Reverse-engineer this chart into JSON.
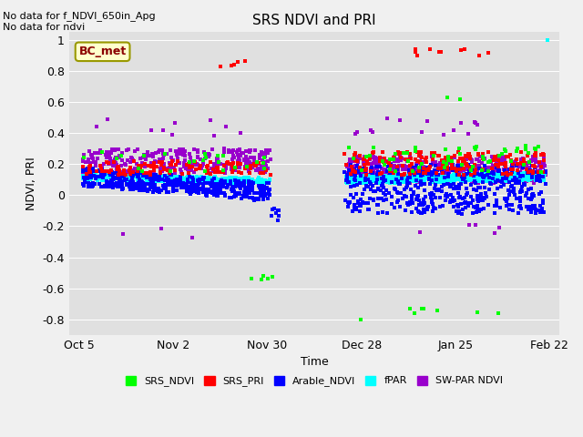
{
  "title": "SRS NDVI and PRI",
  "xlabel": "Time",
  "ylabel": "NDVI, PRI",
  "text_top_left": "No data for f_NDVI_650in_Apg\nNo data for ndvi",
  "bc_met_label": "BC_met",
  "ylim": [
    -0.9,
    1.05
  ],
  "xlim": [
    -3,
    143
  ],
  "background_color": "#f0f0f0",
  "plot_bg_color": "#e0e0e0",
  "colors": {
    "SRS_NDVI": "#00ff00",
    "SRS_PRI": "#ff0000",
    "Arable_NDVI": "#0000ff",
    "fPAR": "#00ffff",
    "SW_PAR_NDVI": "#9900cc"
  },
  "x_tick_labels": [
    "Oct 5",
    "Nov 2",
    "Nov 30",
    "Dec 28",
    "Jan 25",
    "Feb 22"
  ],
  "x_tick_days": [
    0,
    28,
    56,
    84,
    112,
    140
  ],
  "yticks": [
    -0.8,
    -0.6,
    -0.4,
    -0.2,
    0.0,
    0.2,
    0.4,
    0.6,
    0.8,
    1.0
  ],
  "marker_size": 9
}
